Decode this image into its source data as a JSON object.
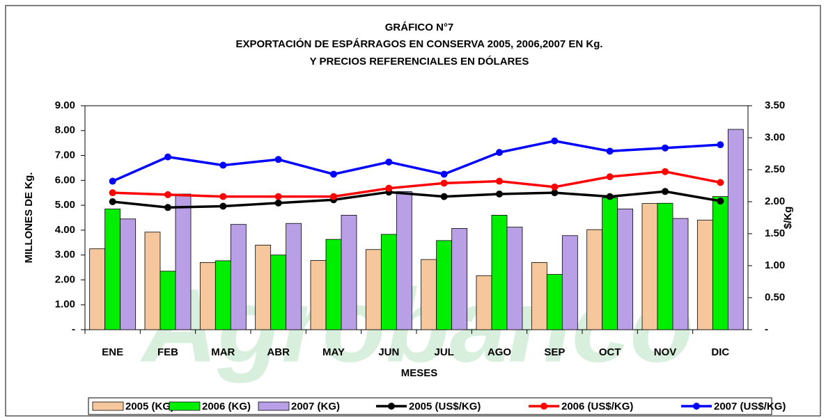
{
  "chart_data": {
    "type": "bar",
    "title": "GRÁFICO N°7",
    "subtitle": [
      "EXPORTACIÓN DE ESPÁRRAGOS EN CONSERVA 2005, 2006,2007 EN Kg.",
      "Y PRECIOS REFERENCIALES EN DÓLARES"
    ],
    "watermark": "Agrobanco",
    "xlabel": "MESES",
    "ylabel": "MILLONES DE Kg.",
    "y2label": "$/Kg",
    "categories": [
      "ENE",
      "FEB",
      "MAR",
      "ABR",
      "MAY",
      "JUN",
      "JUL",
      "AGO",
      "SEP",
      "OCT",
      "NOV",
      "DIC"
    ],
    "ylim": [
      0,
      9
    ],
    "yticks": [
      {
        "value": 0,
        "label": "-"
      },
      {
        "value": 1,
        "label": "1.00"
      },
      {
        "value": 2,
        "label": "2.00"
      },
      {
        "value": 3,
        "label": "3.00"
      },
      {
        "value": 4,
        "label": "4.00"
      },
      {
        "value": 5,
        "label": "5.00"
      },
      {
        "value": 6,
        "label": "6.00"
      },
      {
        "value": 7,
        "label": "7.00"
      },
      {
        "value": 8,
        "label": "8.00"
      },
      {
        "value": 9,
        "label": "9.00"
      }
    ],
    "y2lim": [
      0,
      3.5
    ],
    "y2ticks": [
      {
        "value": 0,
        "label": "-"
      },
      {
        "value": 0.5,
        "label": "0.50"
      },
      {
        "value": 1,
        "label": "1.00"
      },
      {
        "value": 1.5,
        "label": "1.50"
      },
      {
        "value": 2,
        "label": "2.00"
      },
      {
        "value": 2.5,
        "label": "2.50"
      },
      {
        "value": 3,
        "label": "3.00"
      },
      {
        "value": 3.5,
        "label": "3.50"
      }
    ],
    "series": [
      {
        "name": "2005 (KG)",
        "type": "bar",
        "color": "#f6c79c",
        "values": [
          3.25,
          3.92,
          2.7,
          3.4,
          2.78,
          3.22,
          2.82,
          2.17,
          2.7,
          4.02,
          5.07,
          4.4
        ]
      },
      {
        "name": "2006 (KG)",
        "type": "bar",
        "color": "#00ee00",
        "values": [
          4.85,
          2.35,
          2.77,
          3.0,
          3.63,
          3.83,
          3.58,
          4.6,
          2.22,
          5.3,
          5.08,
          5.35
        ]
      },
      {
        "name": "2007 (KG)",
        "type": "bar",
        "color": "#b9a0e6",
        "values": [
          4.45,
          5.45,
          4.23,
          4.27,
          4.6,
          5.55,
          4.07,
          4.12,
          3.78,
          4.85,
          4.47,
          8.05
        ]
      },
      {
        "name": "2005 (US$/KG)",
        "type": "line",
        "axis": "y2",
        "color": "#000000",
        "values": [
          2.0,
          1.91,
          1.93,
          1.98,
          2.03,
          2.15,
          2.08,
          2.12,
          2.14,
          2.08,
          2.16,
          2.01
        ]
      },
      {
        "name": "2006 (US$/KG)",
        "type": "line",
        "axis": "y2",
        "color": "#ff0000",
        "values": [
          2.14,
          2.11,
          2.08,
          2.08,
          2.08,
          2.21,
          2.29,
          2.32,
          2.23,
          2.39,
          2.47,
          2.3
        ]
      },
      {
        "name": "2007 (US$/KG)",
        "type": "line",
        "axis": "y2",
        "color": "#0000ff",
        "values": [
          2.32,
          2.7,
          2.57,
          2.66,
          2.43,
          2.62,
          2.43,
          2.77,
          2.95,
          2.79,
          2.84,
          2.89
        ]
      }
    ]
  }
}
